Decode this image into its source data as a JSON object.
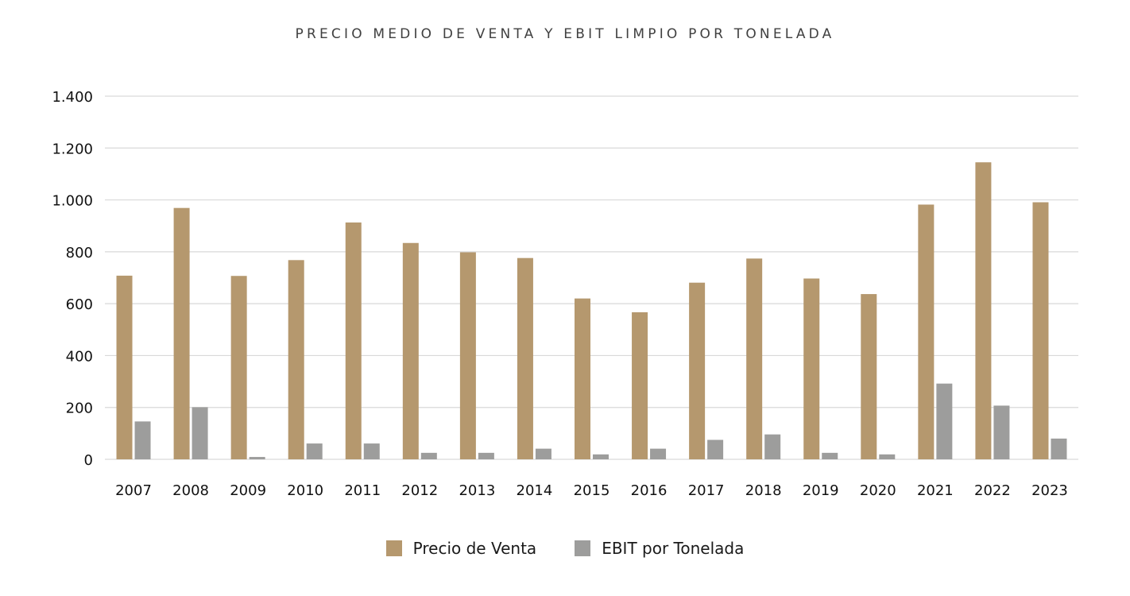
{
  "chart_data": {
    "type": "bar",
    "title": "PRECIO MEDIO DE VENTA Y EBIT LIMPIO POR TONELADA",
    "xlabel": "",
    "ylabel": "",
    "ylim": [
      0,
      1400
    ],
    "yticks": [
      0,
      200,
      400,
      600,
      800,
      1000,
      1200,
      1400
    ],
    "ytick_labels": [
      "0",
      "200",
      "400",
      "600",
      "800",
      "1.000",
      "1.200",
      "1.400"
    ],
    "grid": true,
    "legend_position": "bottom-center",
    "categories": [
      "2007",
      "2008",
      "2009",
      "2010",
      "2011",
      "2012",
      "2013",
      "2014",
      "2015",
      "2016",
      "2017",
      "2018",
      "2019",
      "2020",
      "2021",
      "2022",
      "2023"
    ],
    "series": [
      {
        "name": "Precio de Venta",
        "color": "#b5986e",
        "values": [
          708,
          969,
          707,
          768,
          913,
          834,
          798,
          776,
          620,
          567,
          681,
          774,
          697,
          637,
          982,
          1145,
          991
        ]
      },
      {
        "name": "EBIT por Tonelada",
        "color": "#9d9d9c",
        "values": [
          146,
          201,
          9,
          61,
          61,
          25,
          25,
          41,
          19,
          41,
          75,
          96,
          25,
          19,
          292,
          207,
          80
        ]
      }
    ]
  }
}
